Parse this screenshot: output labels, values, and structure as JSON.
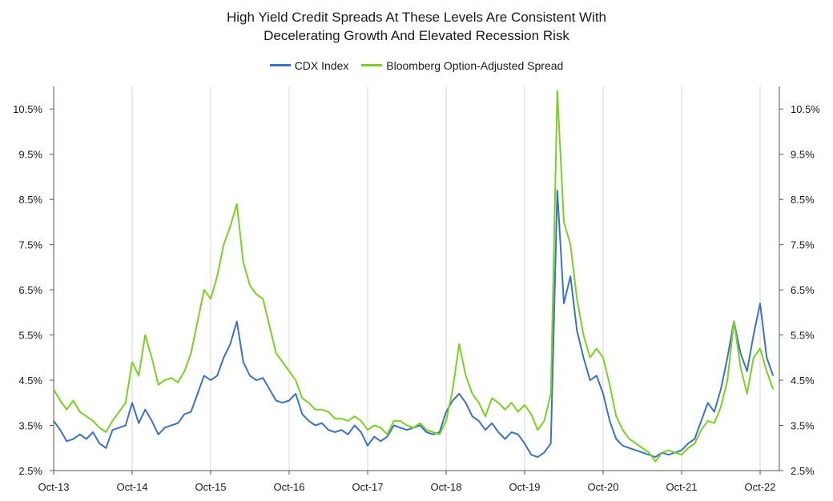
{
  "chart_data": {
    "type": "line",
    "title_lines": [
      "High Yield Credit Spreads At These Levels Are Consistent With",
      "Decelerating Growth And Elevated Recession Risk"
    ],
    "legend_position": "top-center",
    "grid": {
      "vertical": true,
      "horizontal": false
    },
    "x_tick_labels": [
      "Oct-13",
      "Oct-14",
      "Oct-15",
      "Oct-16",
      "Oct-17",
      "Oct-18",
      "Oct-19",
      "Oct-20",
      "Oct-21",
      "Oct-22"
    ],
    "y_tick_labels": [
      "2.5%",
      "3.5%",
      "4.5%",
      "5.5%",
      "6.5%",
      "7.5%",
      "8.5%",
      "9.5%",
      "10.5%"
    ],
    "y_ticks": [
      2.5,
      3.5,
      4.5,
      5.5,
      6.5,
      7.5,
      8.5,
      9.5,
      10.5
    ],
    "ylim": [
      2.5,
      11.0
    ],
    "xlim": [
      "2013-10",
      "2022-12"
    ],
    "series": [
      {
        "name": "CDX Index",
        "color": "#3a72c4",
        "points": [
          [
            "2013-10",
            3.6
          ],
          [
            "2013-11",
            3.4
          ],
          [
            "2013-12",
            3.15
          ],
          [
            "2014-01",
            3.2
          ],
          [
            "2014-02",
            3.3
          ],
          [
            "2014-03",
            3.2
          ],
          [
            "2014-04",
            3.35
          ],
          [
            "2014-05",
            3.1
          ],
          [
            "2014-06",
            3.0
          ],
          [
            "2014-07",
            3.4
          ],
          [
            "2014-08",
            3.45
          ],
          [
            "2014-09",
            3.5
          ],
          [
            "2014-10",
            4.0
          ],
          [
            "2014-11",
            3.55
          ],
          [
            "2014-12",
            3.85
          ],
          [
            "2015-01",
            3.6
          ],
          [
            "2015-02",
            3.3
          ],
          [
            "2015-03",
            3.45
          ],
          [
            "2015-04",
            3.5
          ],
          [
            "2015-05",
            3.55
          ],
          [
            "2015-06",
            3.75
          ],
          [
            "2015-07",
            3.8
          ],
          [
            "2015-08",
            4.2
          ],
          [
            "2015-09",
            4.6
          ],
          [
            "2015-10",
            4.5
          ],
          [
            "2015-11",
            4.6
          ],
          [
            "2015-12",
            5.0
          ],
          [
            "2016-01",
            5.3
          ],
          [
            "2016-02",
            5.8
          ],
          [
            "2016-03",
            4.9
          ],
          [
            "2016-04",
            4.6
          ],
          [
            "2016-05",
            4.5
          ],
          [
            "2016-06",
            4.55
          ],
          [
            "2016-07",
            4.3
          ],
          [
            "2016-08",
            4.05
          ],
          [
            "2016-09",
            4.0
          ],
          [
            "2016-10",
            4.05
          ],
          [
            "2016-11",
            4.2
          ],
          [
            "2016-12",
            3.75
          ],
          [
            "2017-01",
            3.6
          ],
          [
            "2017-02",
            3.5
          ],
          [
            "2017-03",
            3.55
          ],
          [
            "2017-04",
            3.4
          ],
          [
            "2017-05",
            3.35
          ],
          [
            "2017-06",
            3.4
          ],
          [
            "2017-07",
            3.3
          ],
          [
            "2017-08",
            3.5
          ],
          [
            "2017-09",
            3.35
          ],
          [
            "2017-10",
            3.05
          ],
          [
            "2017-11",
            3.25
          ],
          [
            "2017-12",
            3.15
          ],
          [
            "2018-01",
            3.25
          ],
          [
            "2018-02",
            3.5
          ],
          [
            "2018-03",
            3.45
          ],
          [
            "2018-04",
            3.4
          ],
          [
            "2018-05",
            3.45
          ],
          [
            "2018-06",
            3.5
          ],
          [
            "2018-07",
            3.35
          ],
          [
            "2018-08",
            3.3
          ],
          [
            "2018-09",
            3.35
          ],
          [
            "2018-10",
            3.8
          ],
          [
            "2018-11",
            4.05
          ],
          [
            "2018-12",
            4.2
          ],
          [
            "2019-01",
            4.0
          ],
          [
            "2019-02",
            3.7
          ],
          [
            "2019-03",
            3.6
          ],
          [
            "2019-04",
            3.4
          ],
          [
            "2019-05",
            3.55
          ],
          [
            "2019-06",
            3.35
          ],
          [
            "2019-07",
            3.2
          ],
          [
            "2019-08",
            3.35
          ],
          [
            "2019-09",
            3.3
          ],
          [
            "2019-10",
            3.1
          ],
          [
            "2019-11",
            2.85
          ],
          [
            "2019-12",
            2.8
          ],
          [
            "2020-01",
            2.9
          ],
          [
            "2020-02",
            3.1
          ],
          [
            "2020-03",
            8.7
          ],
          [
            "2020-04",
            6.2
          ],
          [
            "2020-05",
            6.8
          ],
          [
            "2020-06",
            5.6
          ],
          [
            "2020-07",
            5.0
          ],
          [
            "2020-08",
            4.5
          ],
          [
            "2020-09",
            4.6
          ],
          [
            "2020-10",
            4.2
          ],
          [
            "2020-11",
            3.6
          ],
          [
            "2020-12",
            3.2
          ],
          [
            "2021-01",
            3.05
          ],
          [
            "2021-02",
            3.0
          ],
          [
            "2021-03",
            2.95
          ],
          [
            "2021-04",
            2.9
          ],
          [
            "2021-05",
            2.85
          ],
          [
            "2021-06",
            2.8
          ],
          [
            "2021-07",
            2.9
          ],
          [
            "2021-08",
            2.85
          ],
          [
            "2021-09",
            2.9
          ],
          [
            "2021-10",
            2.95
          ],
          [
            "2021-11",
            3.1
          ],
          [
            "2021-12",
            3.2
          ],
          [
            "2022-01",
            3.6
          ],
          [
            "2022-02",
            4.0
          ],
          [
            "2022-03",
            3.8
          ],
          [
            "2022-04",
            4.3
          ],
          [
            "2022-05",
            5.0
          ],
          [
            "2022-06",
            5.8
          ],
          [
            "2022-07",
            5.1
          ],
          [
            "2022-08",
            4.7
          ],
          [
            "2022-09",
            5.5
          ],
          [
            "2022-10",
            6.2
          ],
          [
            "2022-11",
            5.0
          ],
          [
            "2022-12",
            4.6
          ]
        ]
      },
      {
        "name": "Bloomberg Option-Adjusted Spread",
        "color": "#7ad11f",
        "points": [
          [
            "2013-10",
            4.3
          ],
          [
            "2013-11",
            4.05
          ],
          [
            "2013-12",
            3.85
          ],
          [
            "2014-01",
            4.05
          ],
          [
            "2014-02",
            3.8
          ],
          [
            "2014-03",
            3.7
          ],
          [
            "2014-04",
            3.6
          ],
          [
            "2014-05",
            3.45
          ],
          [
            "2014-06",
            3.35
          ],
          [
            "2014-07",
            3.6
          ],
          [
            "2014-08",
            3.8
          ],
          [
            "2014-09",
            4.0
          ],
          [
            "2014-10",
            4.9
          ],
          [
            "2014-11",
            4.6
          ],
          [
            "2014-12",
            5.5
          ],
          [
            "2015-01",
            5.0
          ],
          [
            "2015-02",
            4.4
          ],
          [
            "2015-03",
            4.5
          ],
          [
            "2015-04",
            4.55
          ],
          [
            "2015-05",
            4.45
          ],
          [
            "2015-06",
            4.7
          ],
          [
            "2015-07",
            5.1
          ],
          [
            "2015-08",
            5.8
          ],
          [
            "2015-09",
            6.5
          ],
          [
            "2015-10",
            6.3
          ],
          [
            "2015-11",
            6.8
          ],
          [
            "2015-12",
            7.5
          ],
          [
            "2016-01",
            7.9
          ],
          [
            "2016-02",
            8.4
          ],
          [
            "2016-03",
            7.1
          ],
          [
            "2016-04",
            6.6
          ],
          [
            "2016-05",
            6.4
          ],
          [
            "2016-06",
            6.3
          ],
          [
            "2016-07",
            5.7
          ],
          [
            "2016-08",
            5.1
          ],
          [
            "2016-09",
            4.9
          ],
          [
            "2016-10",
            4.7
          ],
          [
            "2016-11",
            4.5
          ],
          [
            "2016-12",
            4.1
          ],
          [
            "2017-01",
            4.0
          ],
          [
            "2017-02",
            3.85
          ],
          [
            "2017-03",
            3.85
          ],
          [
            "2017-04",
            3.8
          ],
          [
            "2017-05",
            3.65
          ],
          [
            "2017-06",
            3.65
          ],
          [
            "2017-07",
            3.6
          ],
          [
            "2017-08",
            3.7
          ],
          [
            "2017-09",
            3.6
          ],
          [
            "2017-10",
            3.4
          ],
          [
            "2017-11",
            3.5
          ],
          [
            "2017-12",
            3.45
          ],
          [
            "2018-01",
            3.3
          ],
          [
            "2018-02",
            3.6
          ],
          [
            "2018-03",
            3.6
          ],
          [
            "2018-04",
            3.5
          ],
          [
            "2018-05",
            3.45
          ],
          [
            "2018-06",
            3.55
          ],
          [
            "2018-07",
            3.4
          ],
          [
            "2018-08",
            3.35
          ],
          [
            "2018-09",
            3.3
          ],
          [
            "2018-10",
            3.6
          ],
          [
            "2018-11",
            4.3
          ],
          [
            "2018-12",
            5.3
          ],
          [
            "2019-01",
            4.6
          ],
          [
            "2019-02",
            4.2
          ],
          [
            "2019-03",
            4.0
          ],
          [
            "2019-04",
            3.7
          ],
          [
            "2019-05",
            4.1
          ],
          [
            "2019-06",
            4.0
          ],
          [
            "2019-07",
            3.85
          ],
          [
            "2019-08",
            4.0
          ],
          [
            "2019-09",
            3.8
          ],
          [
            "2019-10",
            3.95
          ],
          [
            "2019-11",
            3.75
          ],
          [
            "2019-12",
            3.4
          ],
          [
            "2020-01",
            3.6
          ],
          [
            "2020-02",
            4.2
          ],
          [
            "2020-03",
            10.9
          ],
          [
            "2020-04",
            8.0
          ],
          [
            "2020-05",
            7.5
          ],
          [
            "2020-06",
            6.3
          ],
          [
            "2020-07",
            5.5
          ],
          [
            "2020-08",
            5.0
          ],
          [
            "2020-09",
            5.2
          ],
          [
            "2020-10",
            5.0
          ],
          [
            "2020-11",
            4.4
          ],
          [
            "2020-12",
            3.7
          ],
          [
            "2021-01",
            3.4
          ],
          [
            "2021-02",
            3.2
          ],
          [
            "2021-03",
            3.1
          ],
          [
            "2021-04",
            3.0
          ],
          [
            "2021-05",
            2.9
          ],
          [
            "2021-06",
            2.7
          ],
          [
            "2021-07",
            2.9
          ],
          [
            "2021-08",
            2.95
          ],
          [
            "2021-09",
            2.9
          ],
          [
            "2021-10",
            2.85
          ],
          [
            "2021-11",
            3.0
          ],
          [
            "2021-12",
            3.1
          ],
          [
            "2022-01",
            3.4
          ],
          [
            "2022-02",
            3.6
          ],
          [
            "2022-03",
            3.55
          ],
          [
            "2022-04",
            3.9
          ],
          [
            "2022-05",
            4.5
          ],
          [
            "2022-06",
            5.8
          ],
          [
            "2022-07",
            4.8
          ],
          [
            "2022-08",
            4.2
          ],
          [
            "2022-09",
            5.0
          ],
          [
            "2022-10",
            5.2
          ],
          [
            "2022-11",
            4.7
          ],
          [
            "2022-12",
            4.3
          ]
        ]
      }
    ]
  }
}
